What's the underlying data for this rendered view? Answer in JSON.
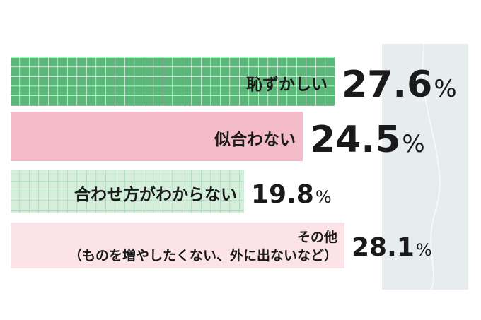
{
  "chart_data": {
    "type": "bar",
    "orientation": "horizontal",
    "categories": [
      "恥ずかしい",
      "似合わない",
      "合わせ方がわからない",
      "その他（ものを増やしたくない、外に出ないなど）"
    ],
    "category_lines": [
      [
        "恥ずかしい"
      ],
      [
        "似合わない"
      ],
      [
        "合わせ方がわからない"
      ],
      [
        "その他",
        "（ものを増やしたくない、外に出ないなど）"
      ]
    ],
    "values": [
      27.6,
      24.5,
      19.8,
      28.1
    ],
    "value_labels": [
      "27.6",
      "24.5",
      "19.8",
      "28.1"
    ],
    "unit": "%",
    "bar_styles": [
      "grid",
      "solid",
      "grid",
      "solid"
    ],
    "colors": {
      "grid_fill": "#5cb87a",
      "grid_line": "#ffffff",
      "grid_fill_light": "#d4eedb",
      "grid_line_light": "#9fd3ad",
      "pink": "#f4bcc8",
      "pink_light": "#fbe3e8",
      "backdrop": "#e7ecef",
      "text": "#1a1a1a"
    }
  }
}
